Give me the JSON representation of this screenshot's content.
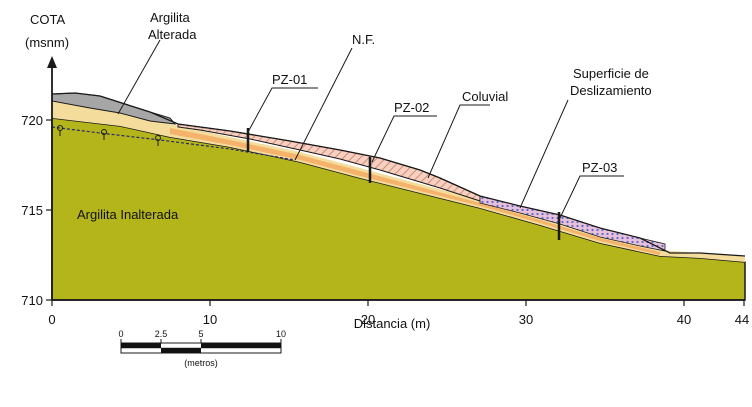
{
  "colors": {
    "argilita_inalterada": "#b3b51a",
    "argilita_alterada": "#a6a6a6",
    "orange_layer": "#f4b26a",
    "light_layer": "#f4dc9c",
    "coluvial_hatch": "#d88878",
    "slip_surface": "#6070c8",
    "outline": "#1a1a1a"
  },
  "axes": {
    "y_title_line1": "COTA",
    "y_title_line2": "(msnm)",
    "x_title": "Distancia (m)",
    "y_ticks": [
      "720",
      "715",
      "710"
    ],
    "x_ticks": [
      "0",
      "10",
      "20",
      "30",
      "40",
      "44"
    ]
  },
  "labels": {
    "argilita_alterada_line1": "Argilita",
    "argilita_alterada_line2": "Alterada",
    "nf": "N.F.",
    "pz01": "PZ-01",
    "pz02": "PZ-02",
    "pz03": "PZ-03",
    "coluvial": "Coluvial",
    "superficie_line1": "Superficie de",
    "superficie_line2": "Deslizamiento",
    "argilita_inalterada": "Argilita Inalterada"
  },
  "scale_bar": {
    "ticks": [
      "0",
      "2.5",
      "5",
      "10"
    ],
    "unit": "(metros)"
  }
}
